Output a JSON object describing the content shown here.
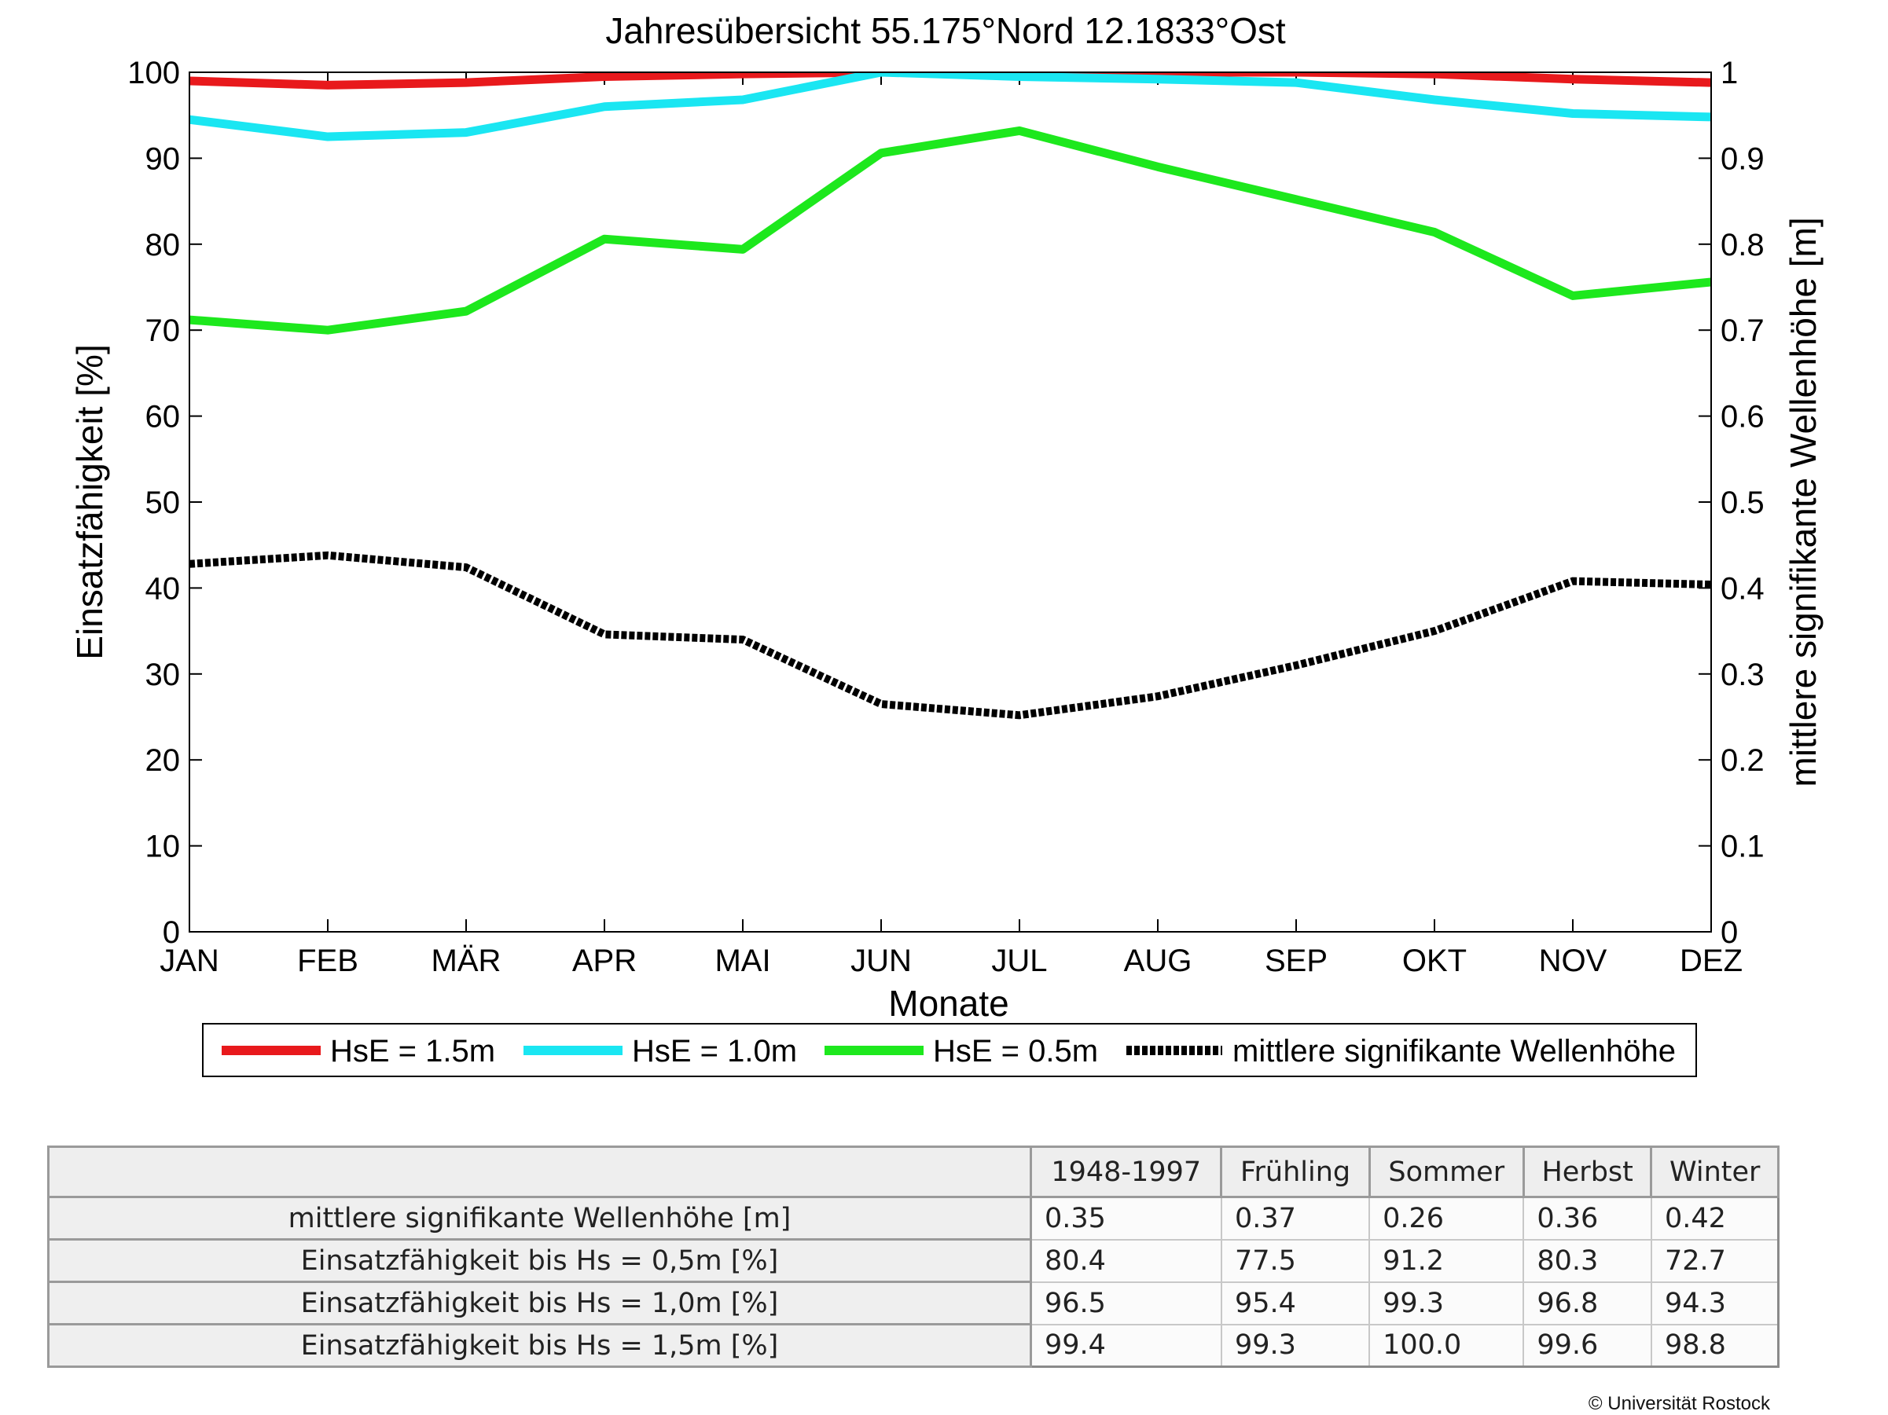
{
  "chart_data": {
    "type": "line",
    "title": "Jahresübersicht  55.175°Nord  12.1833°Ost",
    "xlabel": "Monate",
    "ylabel": "Einsatzfähigkeit [%]",
    "ylabel_right": "mittlere signifikante Wellenhöhe [m]",
    "categories": [
      "JAN",
      "FEB",
      "MÄR",
      "APR",
      "MAI",
      "JUN",
      "JUL",
      "AUG",
      "SEP",
      "OKT",
      "NOV",
      "DEZ"
    ],
    "ylim": [
      0,
      100
    ],
    "ylim_right": [
      0,
      1
    ],
    "yticks": [
      "0",
      "10",
      "20",
      "30",
      "40",
      "50",
      "60",
      "70",
      "80",
      "90",
      "100"
    ],
    "yticks_right": [
      "0",
      "0.1",
      "0.2",
      "0.3",
      "0.4",
      "0.5",
      "0.6",
      "0.7",
      "0.8",
      "0.9",
      "1"
    ],
    "legend_position": "bottom",
    "series": [
      {
        "name": "HsE = 1.5m",
        "axis": "left",
        "color": "#e8191c",
        "style": "solid",
        "values": [
          99.0,
          98.5,
          98.8,
          99.5,
          99.8,
          100.0,
          100.0,
          100.0,
          100.0,
          99.8,
          99.2,
          98.8
        ]
      },
      {
        "name": "HsE = 1.0m",
        "axis": "left",
        "color": "#1ae6f2",
        "style": "solid",
        "values": [
          94.5,
          92.5,
          93.0,
          96.0,
          96.8,
          100.0,
          99.5,
          99.2,
          98.8,
          96.8,
          95.2,
          94.8
        ]
      },
      {
        "name": "HsE = 0.5m",
        "axis": "left",
        "color": "#1de81d",
        "style": "solid",
        "values": [
          71.2,
          70.0,
          72.2,
          80.6,
          79.4,
          90.6,
          93.2,
          89.0,
          85.2,
          81.4,
          74.0,
          75.6
        ]
      },
      {
        "name": "mittlere signifikante Wellenhöhe",
        "axis": "right",
        "color": "#000000",
        "style": "dotted",
        "values": [
          0.428,
          0.438,
          0.424,
          0.346,
          0.34,
          0.265,
          0.252,
          0.274,
          0.31,
          0.35,
          0.408,
          0.404
        ]
      }
    ]
  },
  "table": {
    "columns": [
      "1948-1997",
      "Frühling",
      "Sommer",
      "Herbst",
      "Winter"
    ],
    "rows": [
      {
        "label": "mittlere signifikante Wellenhöhe [m]",
        "values": [
          "0.35",
          "0.37",
          "0.26",
          "0.36",
          "0.42"
        ]
      },
      {
        "label": "Einsatzfähigkeit bis Hs = 0,5m [%]",
        "values": [
          "80.4",
          "77.5",
          "91.2",
          "80.3",
          "72.7"
        ]
      },
      {
        "label": "Einsatzfähigkeit bis Hs = 1,0m [%]",
        "values": [
          "96.5",
          "95.4",
          "99.3",
          "96.8",
          "94.3"
        ]
      },
      {
        "label": "Einsatzfähigkeit bis Hs = 1,5m [%]",
        "values": [
          "99.4",
          "99.3",
          "100.0",
          "99.6",
          "98.8"
        ]
      }
    ]
  },
  "copyright": "© Universität Rostock"
}
